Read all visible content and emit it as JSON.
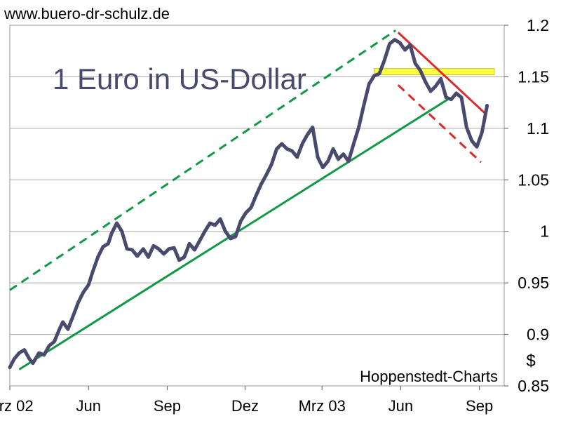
{
  "header": {
    "url": "www.buero-dr-schulz.de"
  },
  "chart_data": {
    "type": "line",
    "title": "1 Euro in US-Dollar",
    "credit": "Hoppenstedt-Charts",
    "ylabel": "$",
    "ylim": [
      0.85,
      1.2
    ],
    "yticks": [
      0.85,
      0.9,
      0.95,
      1,
      1.05,
      1.1,
      1.15,
      1.2
    ],
    "ytick_labels": [
      "0.85",
      "0.9",
      "0.95",
      "1",
      "1.05",
      "1.1",
      "1.15",
      "1.2"
    ],
    "xlim": [
      "2002-03-01",
      "2003-09-30"
    ],
    "xticks": [
      {
        "date": "2002-03-01",
        "label": "Mrz 02"
      },
      {
        "date": "2002-06-01",
        "label": "Jun"
      },
      {
        "date": "2002-09-01",
        "label": "Sep"
      },
      {
        "date": "2002-12-01",
        "label": "Dez"
      },
      {
        "date": "2003-03-01",
        "label": "Mrz 03"
      },
      {
        "date": "2003-06-01",
        "label": "Jun"
      },
      {
        "date": "2003-09-01",
        "label": "Sep"
      }
    ],
    "grid": true,
    "colors": {
      "series": "#4a4a6e",
      "support": "#119944",
      "resistance": "#dd2a2a",
      "zone": "#ffff44",
      "title": "#4a4a6e"
    },
    "series": [
      {
        "x": [
          "2002-03-01",
          "2002-03-06",
          "2002-03-12",
          "2002-03-18",
          "2002-03-24",
          "2002-03-28",
          "2002-04-04",
          "2002-04-10",
          "2002-04-16",
          "2002-04-22",
          "2002-04-28",
          "2002-05-02",
          "2002-05-08",
          "2002-05-14",
          "2002-05-20",
          "2002-05-26",
          "2002-06-01",
          "2002-06-06",
          "2002-06-12",
          "2002-06-18",
          "2002-06-24",
          "2002-06-28",
          "2002-07-04",
          "2002-07-10",
          "2002-07-16",
          "2002-07-22",
          "2002-07-28",
          "2002-08-04",
          "2002-08-10",
          "2002-08-16",
          "2002-08-22",
          "2002-08-28",
          "2002-09-03",
          "2002-09-09",
          "2002-09-15",
          "2002-09-21",
          "2002-09-27",
          "2002-10-03",
          "2002-10-09",
          "2002-10-15",
          "2002-10-21",
          "2002-10-27",
          "2002-11-02",
          "2002-11-08",
          "2002-11-14",
          "2002-11-20",
          "2002-11-26",
          "2002-12-02",
          "2002-12-08",
          "2002-12-14",
          "2002-12-20",
          "2002-12-26",
          "2003-01-01",
          "2003-01-07",
          "2003-01-13",
          "2003-01-19",
          "2003-01-25",
          "2003-01-31",
          "2003-02-06",
          "2003-02-12",
          "2003-02-18",
          "2003-02-24",
          "2003-03-02",
          "2003-03-08",
          "2003-03-14",
          "2003-03-20",
          "2003-03-26",
          "2003-04-01",
          "2003-04-07",
          "2003-04-13",
          "2003-04-19",
          "2003-04-25",
          "2003-05-01",
          "2003-05-07",
          "2003-05-13",
          "2003-05-19",
          "2003-05-25",
          "2003-05-31",
          "2003-06-06",
          "2003-06-12",
          "2003-06-18",
          "2003-06-24",
          "2003-06-30",
          "2003-07-06",
          "2003-07-12",
          "2003-07-18",
          "2003-07-24",
          "2003-07-30",
          "2003-08-05",
          "2003-08-11",
          "2003-08-17",
          "2003-08-23",
          "2003-08-29",
          "2003-09-04",
          "2003-09-10"
        ],
        "values": [
          0.868,
          0.876,
          0.882,
          0.885,
          0.876,
          0.872,
          0.882,
          0.88,
          0.889,
          0.893,
          0.905,
          0.912,
          0.905,
          0.918,
          0.931,
          0.941,
          0.948,
          0.961,
          0.975,
          0.985,
          0.988,
          0.998,
          1.008,
          1.0,
          0.983,
          0.982,
          0.976,
          0.983,
          0.975,
          0.986,
          0.983,
          0.978,
          0.983,
          0.984,
          0.972,
          0.975,
          0.988,
          0.982,
          0.991,
          1.0,
          1.008,
          1.006,
          1.012,
          1.0,
          0.993,
          0.995,
          1.01,
          1.018,
          1.023,
          1.035,
          1.046,
          1.055,
          1.065,
          1.08,
          1.085,
          1.08,
          1.078,
          1.072,
          1.085,
          1.094,
          1.101,
          1.072,
          1.062,
          1.068,
          1.08,
          1.07,
          1.075,
          1.068,
          1.085,
          1.101,
          1.123,
          1.143,
          1.151,
          1.153,
          1.166,
          1.182,
          1.186,
          1.183,
          1.176,
          1.181,
          1.163,
          1.156,
          1.145,
          1.136,
          1.141,
          1.148,
          1.13,
          1.128,
          1.134,
          1.13,
          1.101,
          1.088,
          1.082,
          1.096,
          1.122
        ]
      }
    ],
    "trendlines": [
      {
        "name": "support",
        "style": "solid",
        "color": "#119944",
        "x": [
          "2002-03-12",
          "2003-07-26"
        ],
        "y": [
          0.866,
          1.128
        ]
      },
      {
        "name": "upper-channel",
        "style": "dashed",
        "color": "#119944",
        "x": [
          "2002-03-01",
          "2003-05-26"
        ],
        "y": [
          0.943,
          1.195
        ]
      },
      {
        "name": "resistance",
        "style": "solid",
        "color": "#dd2a2a",
        "x": [
          "2003-05-29",
          "2003-09-07"
        ],
        "y": [
          1.193,
          1.115
        ]
      },
      {
        "name": "lower-channel",
        "style": "dashed",
        "color": "#dd2a2a",
        "x": [
          "2003-05-29",
          "2003-09-03"
        ],
        "y": [
          1.142,
          1.067
        ]
      }
    ],
    "zone": {
      "x": [
        "2003-05-01",
        "2003-09-30"
      ],
      "y": [
        1.152,
        1.158
      ]
    }
  }
}
